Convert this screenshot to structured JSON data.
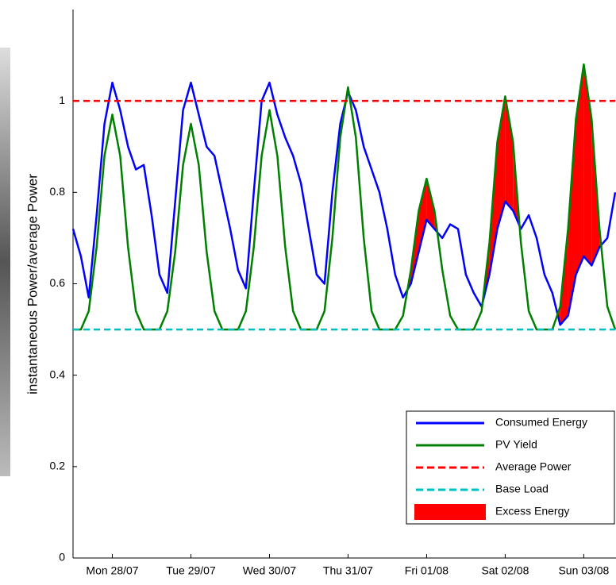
{
  "chart_data": {
    "type": "line",
    "ylabel": "instantaneous  Power/average Power",
    "x": [
      -0.5,
      -0.4,
      -0.3,
      -0.2,
      -0.1,
      0,
      0.1,
      0.2,
      0.3,
      0.4,
      0.5,
      0.6,
      0.7,
      0.8,
      0.9,
      1,
      1.1,
      1.2,
      1.3,
      1.4,
      1.5,
      1.6,
      1.7,
      1.8,
      1.9,
      2,
      2.1,
      2.2,
      2.3,
      2.4,
      2.5,
      2.6,
      2.7,
      2.8,
      2.9,
      3,
      3.1,
      3.2,
      3.3,
      3.4,
      3.5,
      3.6,
      3.7,
      3.8,
      3.9,
      4,
      4.1,
      4.2,
      4.3,
      4.4,
      4.5,
      4.6,
      4.7,
      4.8,
      4.9,
      5,
      5.1,
      5.2,
      5.3,
      5.4,
      5.5,
      5.6,
      5.7,
      5.8,
      5.9,
      6,
      6.1,
      6.2,
      6.3,
      6.4
    ],
    "series": [
      {
        "name": "Consumed Energy",
        "color": "#0000ff",
        "values": [
          0.72,
          0.66,
          0.57,
          0.75,
          0.95,
          1.04,
          0.98,
          0.9,
          0.85,
          0.86,
          0.75,
          0.62,
          0.58,
          0.78,
          0.98,
          1.04,
          0.97,
          0.9,
          0.88,
          0.8,
          0.72,
          0.63,
          0.59,
          0.8,
          1.0,
          1.04,
          0.97,
          0.92,
          0.88,
          0.82,
          0.72,
          0.62,
          0.6,
          0.8,
          0.95,
          1.02,
          0.98,
          0.9,
          0.85,
          0.8,
          0.72,
          0.62,
          0.57,
          0.6,
          0.67,
          0.74,
          0.72,
          0.7,
          0.73,
          0.72,
          0.62,
          0.58,
          0.55,
          0.62,
          0.72,
          0.78,
          0.76,
          0.72,
          0.75,
          0.7,
          0.62,
          0.58,
          0.51,
          0.53,
          0.62,
          0.66,
          0.64,
          0.68,
          0.7,
          0.8
        ]
      },
      {
        "name": "PV Yield",
        "color": "#008000",
        "values": [
          0.5,
          0.5,
          0.54,
          0.68,
          0.88,
          0.97,
          0.88,
          0.68,
          0.54,
          0.5,
          0.5,
          0.5,
          0.54,
          0.67,
          0.86,
          0.95,
          0.86,
          0.67,
          0.54,
          0.5,
          0.5,
          0.5,
          0.54,
          0.68,
          0.88,
          0.98,
          0.88,
          0.68,
          0.54,
          0.5,
          0.5,
          0.5,
          0.54,
          0.7,
          0.92,
          1.03,
          0.92,
          0.7,
          0.54,
          0.5,
          0.5,
          0.5,
          0.53,
          0.63,
          0.76,
          0.83,
          0.76,
          0.63,
          0.53,
          0.5,
          0.5,
          0.5,
          0.54,
          0.69,
          0.91,
          1.01,
          0.91,
          0.69,
          0.54,
          0.5,
          0.5,
          0.5,
          0.55,
          0.72,
          0.96,
          1.08,
          0.96,
          0.72,
          0.55,
          0.5
        ]
      }
    ],
    "hlines": [
      {
        "name": "Average Power",
        "color": "#ff0000",
        "value": 1
      },
      {
        "name": "Base Load",
        "color": "#00bfbf",
        "value": 0.5
      }
    ],
    "excess": {
      "name": "Excess Energy",
      "color": "#ff0000"
    },
    "xlim": [
      -0.5,
      6.4
    ],
    "xticks": [
      {
        "value": 0,
        "label": "Mon 28/07"
      },
      {
        "value": 1,
        "label": "Tue 29/07"
      },
      {
        "value": 2,
        "label": "Wed 30/07"
      },
      {
        "value": 3,
        "label": "Thu 31/07"
      },
      {
        "value": 4,
        "label": "Fri 01/08"
      },
      {
        "value": 5,
        "label": "Sat 02/08"
      },
      {
        "value": 6,
        "label": "Sun 03/08"
      }
    ],
    "ylim": [
      0,
      1.2
    ],
    "yticks": [
      0,
      0.2,
      0.4,
      0.6,
      0.8,
      1
    ],
    "legend": "lower right"
  }
}
